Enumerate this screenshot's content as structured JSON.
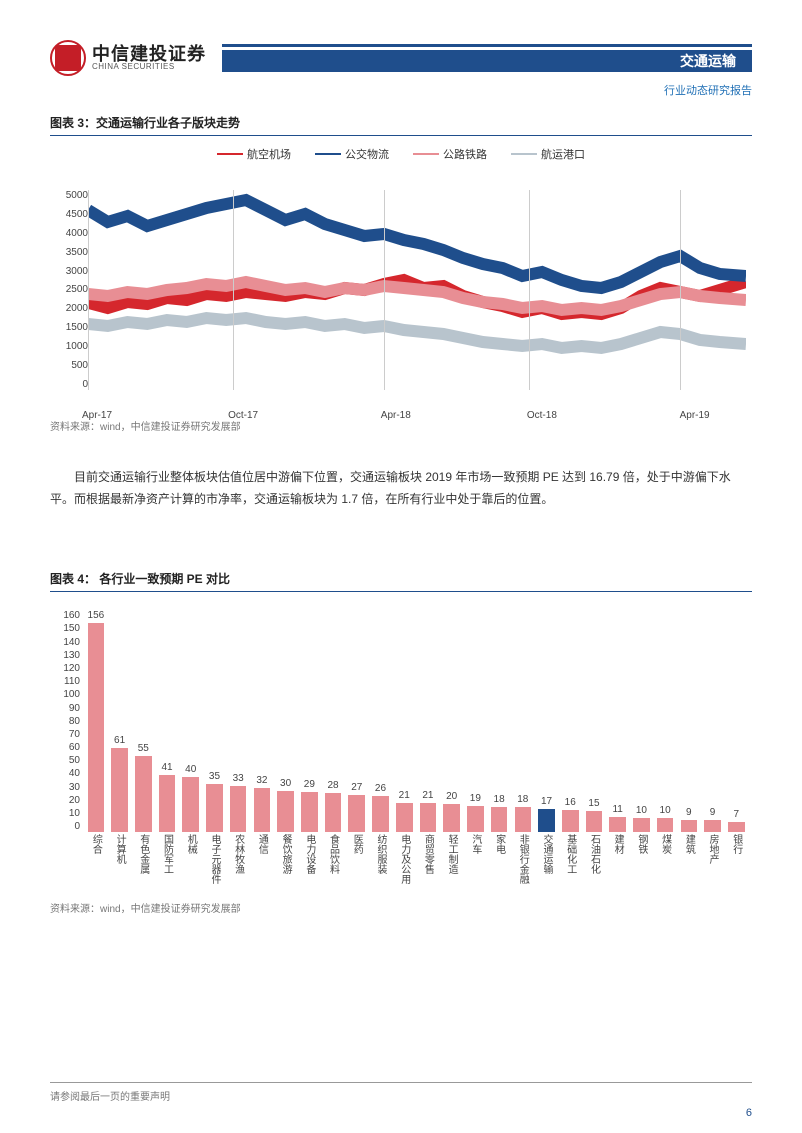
{
  "header": {
    "brand_cn": "中信建投证券",
    "brand_en": "CHINA SECURITIES",
    "section": "交通运输",
    "subtitle": "行业动态研究报告",
    "brand_color": "#c41e27",
    "bar_color": "#1f4e8c"
  },
  "chart3": {
    "title": "图表 3：交通运输行业各子版块走势",
    "type": "line",
    "legend": [
      {
        "name": "航空机场",
        "color": "#d5272d"
      },
      {
        "name": "公交物流",
        "color": "#1f4e8c"
      },
      {
        "name": "公路铁路",
        "color": "#e88e94"
      },
      {
        "name": "航运港口",
        "color": "#b8c4cd"
      }
    ],
    "ylim": [
      0,
      5000
    ],
    "ytick_step": 500,
    "yticks": [
      "5000",
      "4500",
      "4000",
      "3500",
      "3000",
      "2500",
      "2000",
      "1500",
      "1000",
      "500",
      "0"
    ],
    "xticks": [
      "Apr-17",
      "Oct-17",
      "Apr-18",
      "Oct-18",
      "Apr-19"
    ],
    "xtick_positions": [
      0,
      0.22,
      0.45,
      0.67,
      0.9
    ],
    "background_color": "#ffffff",
    "grid_color": "#cccccc",
    "series": {
      "aviation_airport": {
        "color": "#d5272d",
        "points": [
          [
            0,
            2180
          ],
          [
            0.03,
            2050
          ],
          [
            0.06,
            2200
          ],
          [
            0.09,
            2150
          ],
          [
            0.12,
            2300
          ],
          [
            0.15,
            2250
          ],
          [
            0.18,
            2400
          ],
          [
            0.21,
            2350
          ],
          [
            0.24,
            2450
          ],
          [
            0.27,
            2400
          ],
          [
            0.3,
            2350
          ],
          [
            0.33,
            2450
          ],
          [
            0.36,
            2400
          ],
          [
            0.39,
            2550
          ],
          [
            0.42,
            2500
          ],
          [
            0.45,
            2650
          ],
          [
            0.48,
            2750
          ],
          [
            0.51,
            2550
          ],
          [
            0.54,
            2600
          ],
          [
            0.57,
            2350
          ],
          [
            0.6,
            2200
          ],
          [
            0.63,
            2100
          ],
          [
            0.66,
            1950
          ],
          [
            0.69,
            2050
          ],
          [
            0.72,
            1900
          ],
          [
            0.75,
            1950
          ],
          [
            0.78,
            1900
          ],
          [
            0.81,
            2050
          ],
          [
            0.84,
            2350
          ],
          [
            0.87,
            2550
          ],
          [
            0.9,
            2450
          ],
          [
            0.93,
            2350
          ],
          [
            0.96,
            2500
          ],
          [
            1.0,
            2700
          ]
        ]
      },
      "transit_logistics": {
        "color": "#1f4e8c",
        "points": [
          [
            0,
            4500
          ],
          [
            0.03,
            4200
          ],
          [
            0.06,
            4350
          ],
          [
            0.09,
            4100
          ],
          [
            0.12,
            4250
          ],
          [
            0.15,
            4400
          ],
          [
            0.18,
            4550
          ],
          [
            0.21,
            4650
          ],
          [
            0.24,
            4750
          ],
          [
            0.27,
            4500
          ],
          [
            0.3,
            4250
          ],
          [
            0.33,
            4400
          ],
          [
            0.36,
            4150
          ],
          [
            0.39,
            4000
          ],
          [
            0.42,
            3850
          ],
          [
            0.45,
            3900
          ],
          [
            0.48,
            3750
          ],
          [
            0.51,
            3650
          ],
          [
            0.54,
            3500
          ],
          [
            0.57,
            3300
          ],
          [
            0.6,
            3150
          ],
          [
            0.63,
            3050
          ],
          [
            0.66,
            2850
          ],
          [
            0.69,
            2950
          ],
          [
            0.72,
            2750
          ],
          [
            0.75,
            2600
          ],
          [
            0.78,
            2550
          ],
          [
            0.81,
            2700
          ],
          [
            0.84,
            2950
          ],
          [
            0.87,
            3200
          ],
          [
            0.9,
            3350
          ],
          [
            0.93,
            3050
          ],
          [
            0.96,
            2900
          ],
          [
            1.0,
            2850
          ]
        ]
      },
      "road_rail": {
        "color": "#e88e94",
        "points": [
          [
            0,
            2400
          ],
          [
            0.03,
            2350
          ],
          [
            0.06,
            2450
          ],
          [
            0.09,
            2400
          ],
          [
            0.12,
            2500
          ],
          [
            0.15,
            2550
          ],
          [
            0.18,
            2650
          ],
          [
            0.21,
            2600
          ],
          [
            0.24,
            2700
          ],
          [
            0.27,
            2600
          ],
          [
            0.3,
            2500
          ],
          [
            0.33,
            2550
          ],
          [
            0.36,
            2450
          ],
          [
            0.39,
            2550
          ],
          [
            0.42,
            2500
          ],
          [
            0.45,
            2600
          ],
          [
            0.48,
            2550
          ],
          [
            0.51,
            2500
          ],
          [
            0.54,
            2450
          ],
          [
            0.57,
            2300
          ],
          [
            0.6,
            2200
          ],
          [
            0.63,
            2150
          ],
          [
            0.66,
            2050
          ],
          [
            0.69,
            2100
          ],
          [
            0.72,
            2000
          ],
          [
            0.75,
            2050
          ],
          [
            0.78,
            2000
          ],
          [
            0.81,
            2100
          ],
          [
            0.84,
            2250
          ],
          [
            0.87,
            2400
          ],
          [
            0.9,
            2450
          ],
          [
            0.93,
            2350
          ],
          [
            0.96,
            2300
          ],
          [
            1.0,
            2250
          ]
        ]
      },
      "shipping_port": {
        "color": "#b8c4cd",
        "points": [
          [
            0,
            1650
          ],
          [
            0.03,
            1600
          ],
          [
            0.06,
            1700
          ],
          [
            0.09,
            1650
          ],
          [
            0.12,
            1750
          ],
          [
            0.15,
            1700
          ],
          [
            0.18,
            1800
          ],
          [
            0.21,
            1750
          ],
          [
            0.24,
            1800
          ],
          [
            0.27,
            1700
          ],
          [
            0.3,
            1650
          ],
          [
            0.33,
            1700
          ],
          [
            0.36,
            1600
          ],
          [
            0.39,
            1650
          ],
          [
            0.42,
            1550
          ],
          [
            0.45,
            1600
          ],
          [
            0.48,
            1500
          ],
          [
            0.51,
            1450
          ],
          [
            0.54,
            1400
          ],
          [
            0.57,
            1300
          ],
          [
            0.6,
            1200
          ],
          [
            0.63,
            1150
          ],
          [
            0.66,
            1100
          ],
          [
            0.69,
            1150
          ],
          [
            0.72,
            1050
          ],
          [
            0.75,
            1100
          ],
          [
            0.78,
            1050
          ],
          [
            0.81,
            1150
          ],
          [
            0.84,
            1300
          ],
          [
            0.87,
            1450
          ],
          [
            0.9,
            1400
          ],
          [
            0.93,
            1250
          ],
          [
            0.96,
            1200
          ],
          [
            1.0,
            1150
          ]
        ]
      }
    },
    "source": "资料来源：wind，中信建投证券研究发展部"
  },
  "paragraph": "目前交通运输行业整体板块估值位居中游偏下位置，交通运输板块 2019 年市场一致预期 PE 达到 16.79 倍，处于中游偏下水平。而根据最新净资产计算的市净率，交通运输板块为 1.7 倍，在所有行业中处于靠后的位置。",
  "chart4": {
    "title": "图表 4：  各行业一致预期 PE 对比",
    "type": "bar",
    "ylim": [
      0,
      160
    ],
    "yticks": [
      "160",
      "150",
      "140",
      "130",
      "120",
      "110",
      "100",
      "90",
      "80",
      "70",
      "60",
      "50",
      "40",
      "30",
      "20",
      "10",
      "0"
    ],
    "default_color": "#e88e94",
    "highlight_color": "#1f4e8c",
    "background_color": "#ffffff",
    "bars": [
      {
        "cat": "综合",
        "val": 156,
        "highlight": false
      },
      {
        "cat": "计算机",
        "val": 61,
        "highlight": false
      },
      {
        "cat": "有色金属",
        "val": 55,
        "highlight": false
      },
      {
        "cat": "国防军工",
        "val": 41,
        "highlight": false
      },
      {
        "cat": "机械",
        "val": 40,
        "highlight": false
      },
      {
        "cat": "电子元器件",
        "val": 35,
        "highlight": false
      },
      {
        "cat": "农林牧渔",
        "val": 33,
        "highlight": false
      },
      {
        "cat": "通信",
        "val": 32,
        "highlight": false
      },
      {
        "cat": "餐饮旅游",
        "val": 30,
        "highlight": false
      },
      {
        "cat": "电力设备",
        "val": 29,
        "highlight": false
      },
      {
        "cat": "食品饮料",
        "val": 28,
        "highlight": false
      },
      {
        "cat": "医药",
        "val": 27,
        "highlight": false
      },
      {
        "cat": "纺织服装",
        "val": 26,
        "highlight": false
      },
      {
        "cat": "电力及公用",
        "val": 21,
        "highlight": false
      },
      {
        "cat": "商贸零售",
        "val": 21,
        "highlight": false
      },
      {
        "cat": "轻工制造",
        "val": 20,
        "highlight": false
      },
      {
        "cat": "汽车",
        "val": 19,
        "highlight": false
      },
      {
        "cat": "家电",
        "val": 18,
        "highlight": false
      },
      {
        "cat": "非银行金融",
        "val": 18,
        "highlight": false
      },
      {
        "cat": "交通运输",
        "val": 17,
        "highlight": true
      },
      {
        "cat": "基础化工",
        "val": 16,
        "highlight": false
      },
      {
        "cat": "石油石化",
        "val": 15,
        "highlight": false
      },
      {
        "cat": "建材",
        "val": 11,
        "highlight": false
      },
      {
        "cat": "钢铁",
        "val": 10,
        "highlight": false
      },
      {
        "cat": "煤炭",
        "val": 10,
        "highlight": false
      },
      {
        "cat": "建筑",
        "val": 9,
        "highlight": false
      },
      {
        "cat": "房地产",
        "val": 9,
        "highlight": false
      },
      {
        "cat": "银行",
        "val": 7,
        "highlight": false
      }
    ],
    "source": "资料来源：wind，中信建投证券研究发展部"
  },
  "footer": {
    "disclaimer": "请参阅最后一页的重要声明",
    "page_number": "6"
  }
}
